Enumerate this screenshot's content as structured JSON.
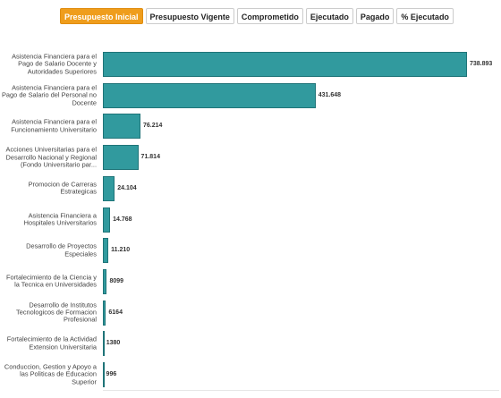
{
  "tabs": [
    {
      "label": "Presupuesto Inicial",
      "active": true
    },
    {
      "label": "Presupuesto Vigente",
      "active": false
    },
    {
      "label": "Comprometido",
      "active": false
    },
    {
      "label": "Ejecutado",
      "active": false
    },
    {
      "label": "Pagado",
      "active": false
    },
    {
      "label": "% Ejecutado",
      "active": false
    }
  ],
  "chart_data": {
    "type": "bar",
    "orientation": "horizontal",
    "color": "#319a9e",
    "categories": [
      "Asistencia Financiera para el Pago de Salario Docente y Autoridades Superiores",
      "Asistencia Financiera para el Pago de Salario del Personal no Docente",
      "Asistencia Financiera para el Funcionamiento Universitario",
      "Acciones Universitarias para el Desarrollo Nacional y Regional (Fondo Universitario par...",
      "Promocion de Carreras Estrategicas",
      "Asistencia Financiera a Hospitales Universitarios",
      "Desarrollo de Proyectos Especiales",
      "Fortalecimiento de la Ciencia y la Tecnica en Universidades",
      "Desarrollo de Institutos Tecnologicos de Formacion Profesional",
      "Fortalecimiento de la Actividad Extension Universitaria",
      "Conduccion, Gestion y Apoyo a las Politicas de Educacion Superior"
    ],
    "values": [
      738893,
      431648,
      76214,
      71814,
      24104,
      14768,
      11210,
      8099,
      6164,
      1380,
      996
    ],
    "value_labels": [
      "738.893",
      "431.648",
      "76.214",
      "71.814",
      "24.104",
      "14.768",
      "11.210",
      "8099",
      "6164",
      "1380",
      "996"
    ]
  }
}
